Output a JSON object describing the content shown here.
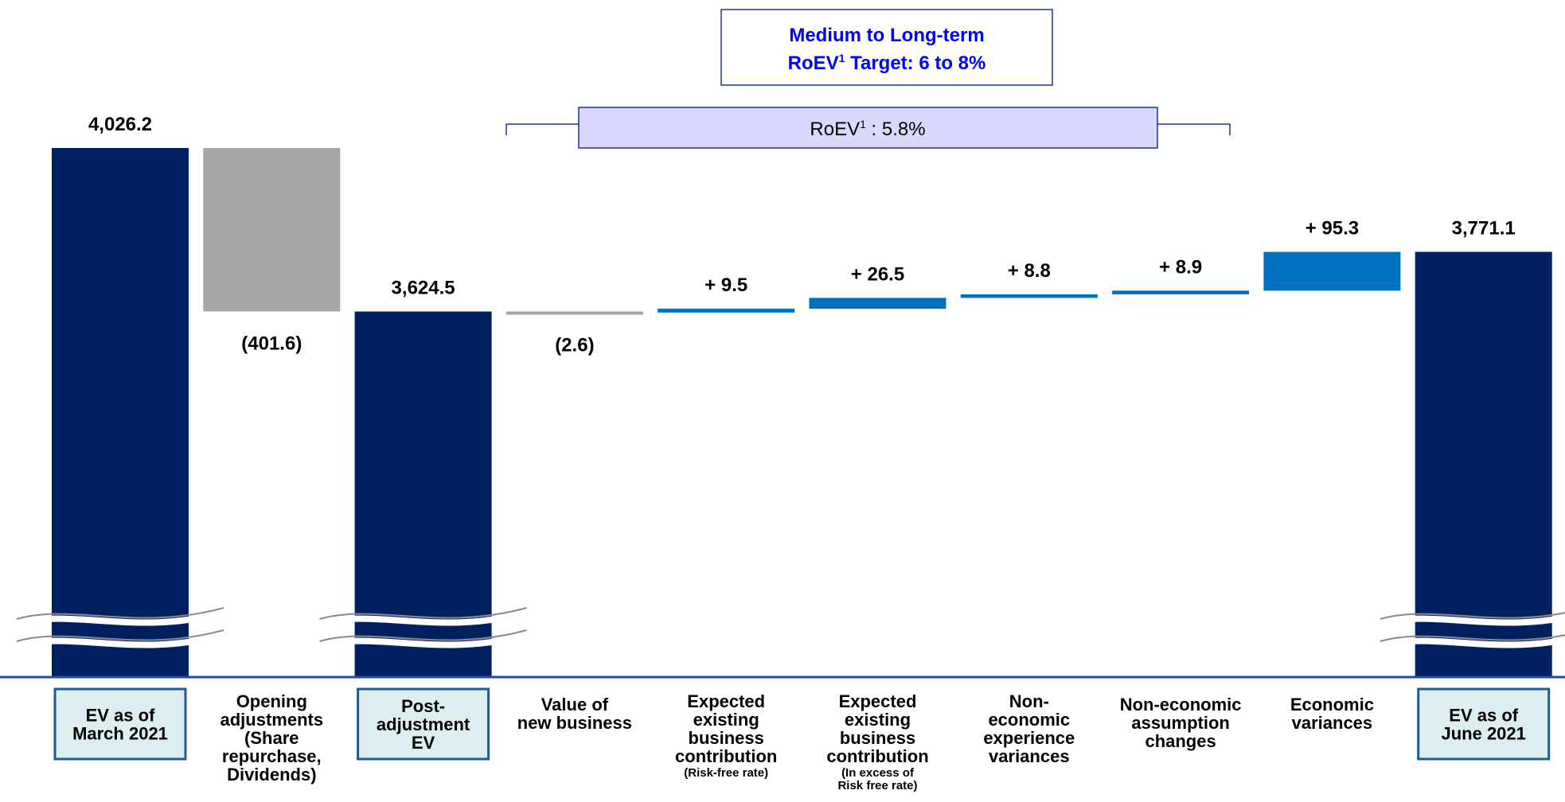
{
  "chart_data": {
    "type": "bar",
    "subtype": "waterfall",
    "title": "",
    "xlabel": "",
    "ylabel": "",
    "axis_break": true,
    "ylim": [
      3000,
      4050
    ],
    "categories": [
      {
        "lines": [
          "EV as of",
          "March 2021"
        ],
        "sub": [],
        "boxed": true
      },
      {
        "lines": [
          "Opening",
          "adjustments",
          "(Share",
          "repurchase,",
          "Dividends)"
        ],
        "sub": [],
        "boxed": false
      },
      {
        "lines": [
          "Post-",
          "adjustment",
          "EV"
        ],
        "sub": [],
        "boxed": true
      },
      {
        "lines": [
          "Value of",
          "new business"
        ],
        "sub": [],
        "boxed": false
      },
      {
        "lines": [
          "Expected",
          "existing",
          "business",
          "contribution"
        ],
        "sub": [
          "(Risk-free rate)"
        ],
        "boxed": false
      },
      {
        "lines": [
          "Expected",
          "existing",
          "business",
          "contribution"
        ],
        "sub": [
          "(In excess of",
          "Risk free rate)"
        ],
        "boxed": false
      },
      {
        "lines": [
          "Non-",
          "economic",
          "experience",
          "variances"
        ],
        "sub": [],
        "boxed": false
      },
      {
        "lines": [
          "Non-economic",
          "assumption",
          "changes"
        ],
        "sub": [],
        "boxed": false
      },
      {
        "lines": [
          "Economic",
          "variances"
        ],
        "sub": [],
        "boxed": false
      },
      {
        "lines": [
          "EV as of",
          "June 2021"
        ],
        "sub": [],
        "boxed": true
      }
    ],
    "bars": [
      {
        "kind": "total",
        "value": 4026.2,
        "label": "4,026.2"
      },
      {
        "kind": "decrease",
        "value": -401.6,
        "label": "(401.6)"
      },
      {
        "kind": "total",
        "value": 3624.5,
        "label": "3,624.5"
      },
      {
        "kind": "decrease",
        "value": -2.6,
        "label": "(2.6)"
      },
      {
        "kind": "increase",
        "value": 9.5,
        "label": "+ 9.5"
      },
      {
        "kind": "increase",
        "value": 26.5,
        "label": "+ 26.5"
      },
      {
        "kind": "increase",
        "value": 8.8,
        "label": "+ 8.8"
      },
      {
        "kind": "increase",
        "value": 8.9,
        "label": "+ 8.9"
      },
      {
        "kind": "increase",
        "value": 95.3,
        "label": "+ 95.3"
      },
      {
        "kind": "total",
        "value": 3771.1,
        "label": "3,771.1"
      }
    ],
    "colors": {
      "total": "#002060",
      "decrease_large": "#A6A6A6",
      "decrease_small": "#A6A6A6",
      "increase": "#0070C0",
      "baseline": "#1F4E9C",
      "box_fill": "#DDEEF0",
      "box_border": "#1F5C8C",
      "target_text": "#0000FF",
      "target_border": "#2030A0",
      "roev_fill": "#D9D9FF",
      "roev_border": "#2030A0"
    }
  },
  "annotations": {
    "target_line1": "Medium to Long-term",
    "target_line2_pre": "RoEV",
    "target_line2_sup": "1",
    "target_line2_post": " Target: 6 to 8%",
    "roev_pre": "RoEV",
    "roev_sup": "1",
    "roev_post": " : 5.8%"
  }
}
